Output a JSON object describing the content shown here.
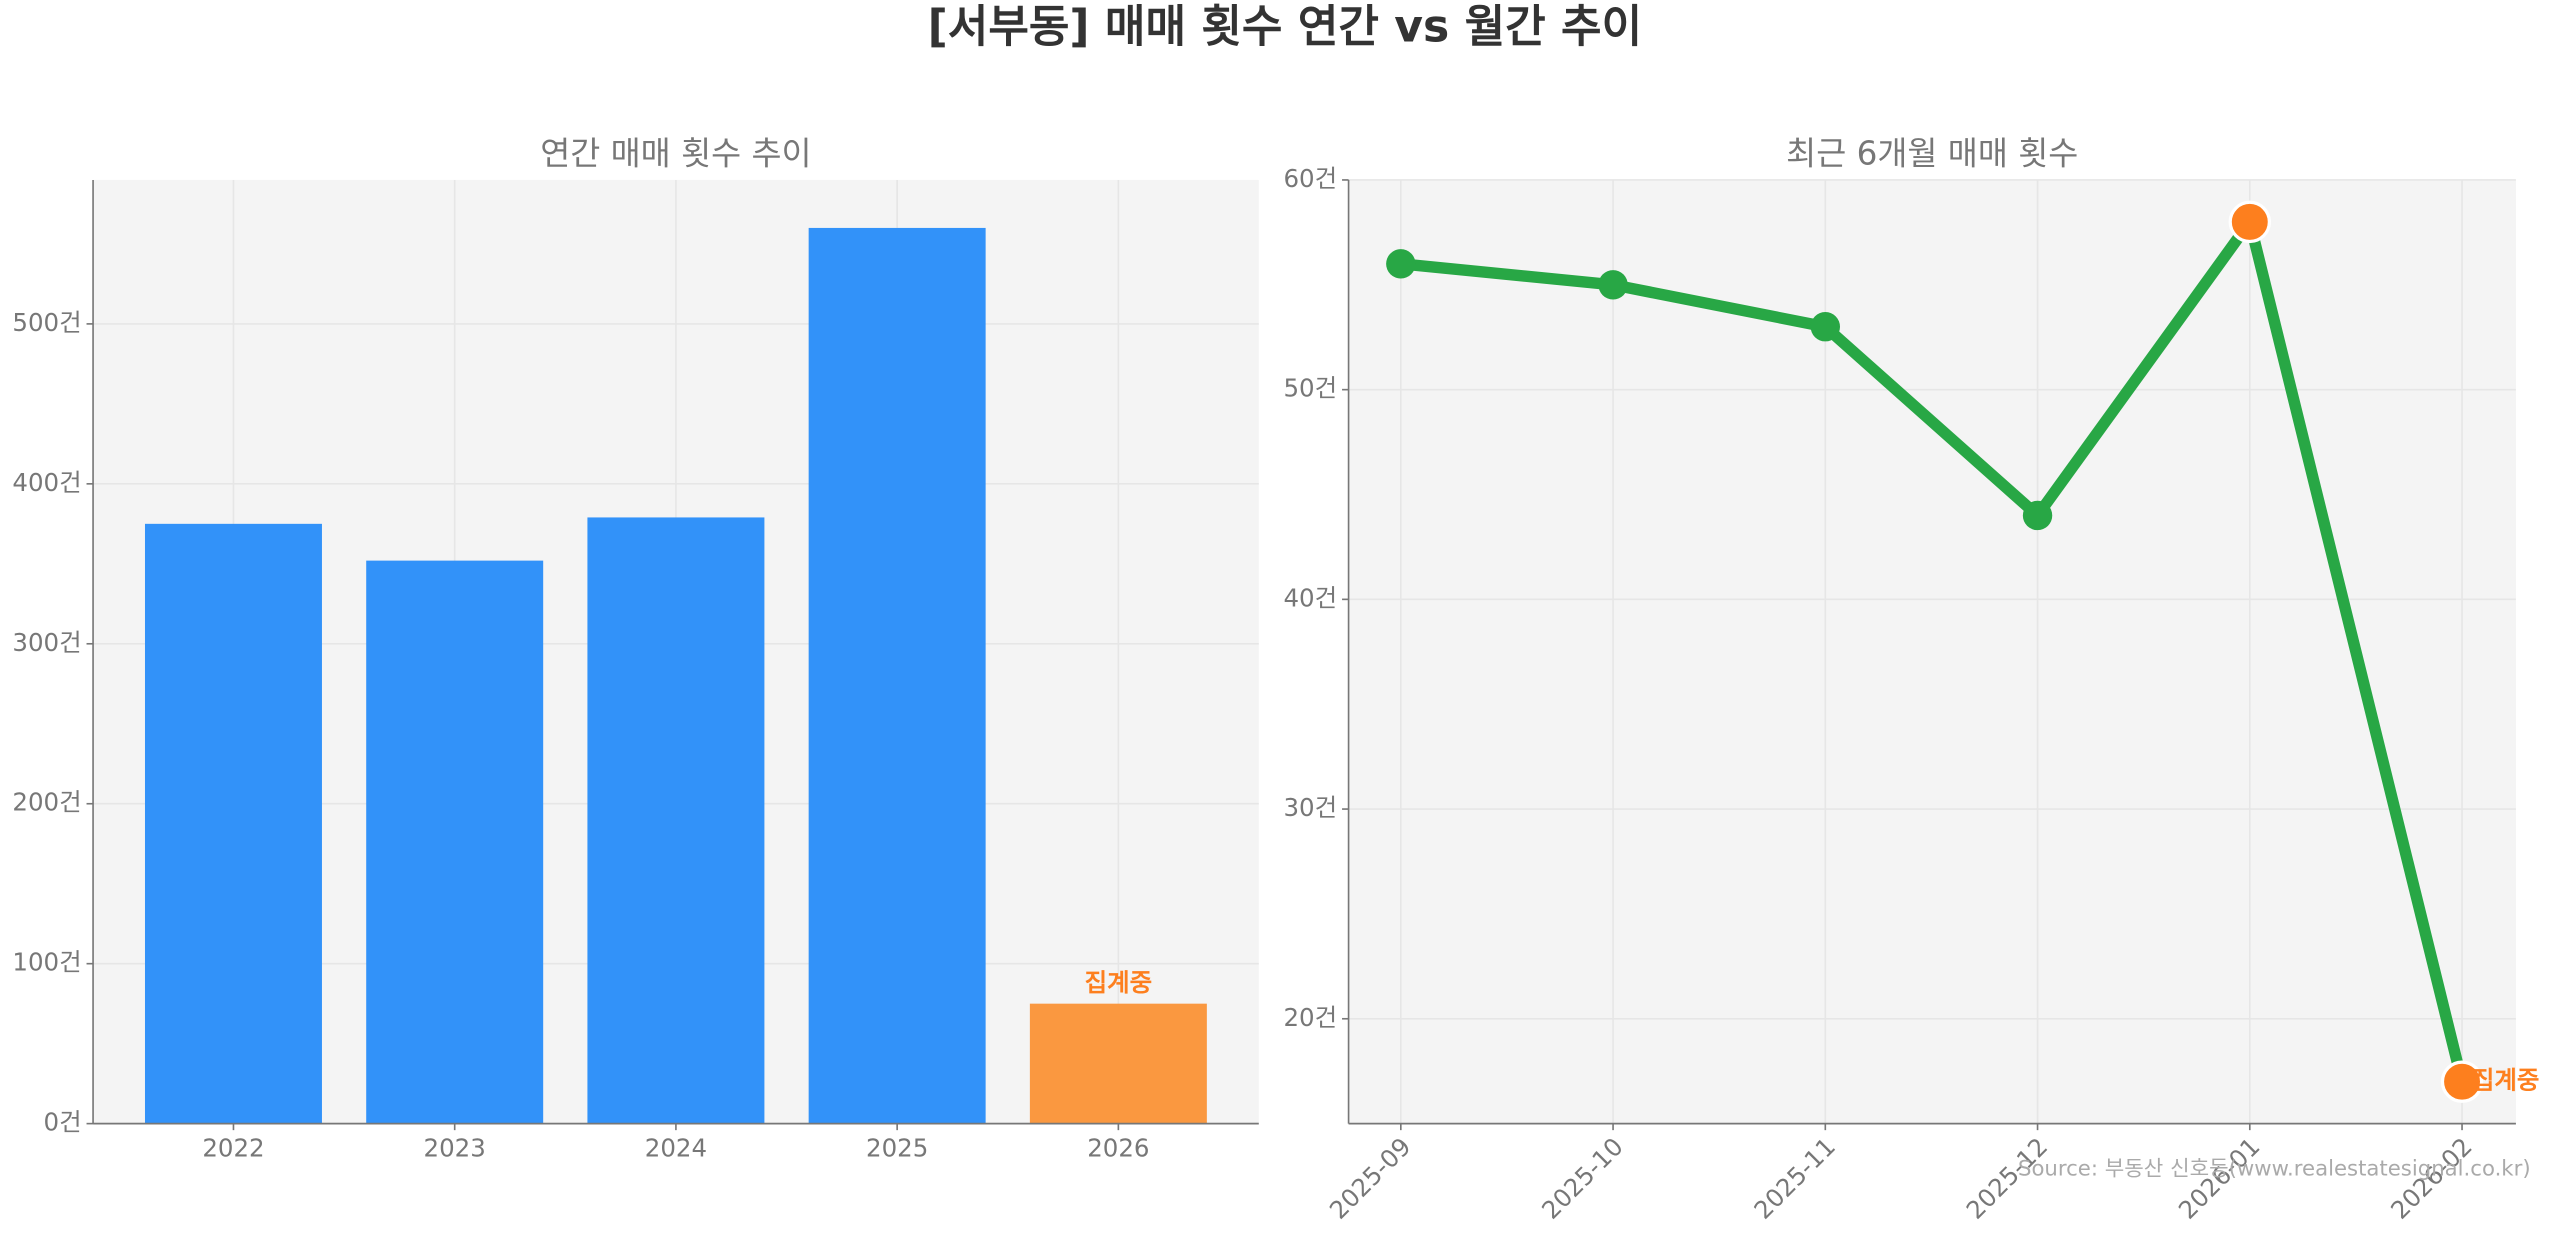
{
  "title": "[서부동] 매매 횟수 연간 vs 월간 추이",
  "source": "Source: 부동산 신호등(www.realestatesignal.co.kr)",
  "chart_data": [
    {
      "type": "bar",
      "title": "연간 매매 횟수 추이",
      "categories": [
        "2022",
        "2023",
        "2024",
        "2025",
        "2026"
      ],
      "values": [
        375,
        352,
        379,
        560,
        75
      ],
      "colors": [
        "#3292f9",
        "#3292f9",
        "#3292f9",
        "#3292f9",
        "#fa9840"
      ],
      "ylim": [
        0,
        590
      ],
      "yticks": [
        {
          "value": 0,
          "label": "0건"
        },
        {
          "value": 100,
          "label": "100건"
        },
        {
          "value": 200,
          "label": "200건"
        },
        {
          "value": 300,
          "label": "300건"
        },
        {
          "value": 400,
          "label": "400건"
        },
        {
          "value": 500,
          "label": "500건"
        }
      ],
      "grid": true,
      "annotation": "집계중",
      "annotation_color": "#fd7f1e"
    },
    {
      "type": "line",
      "title": "최근 6개월 매매 횟수",
      "categories": [
        "2025-09",
        "2025-10",
        "2025-11",
        "2025-12",
        "2026-01",
        "2026-02"
      ],
      "values": [
        56,
        55,
        53,
        44,
        58,
        17
      ],
      "color": "#28a745",
      "marker_colors": [
        "#28a745",
        "#28a745",
        "#28a745",
        "#28a745",
        "#fd7f1e",
        "#fd7f1e"
      ],
      "ylim": [
        15,
        60
      ],
      "yticks": [
        {
          "value": 20,
          "label": "20건"
        },
        {
          "value": 30,
          "label": "30건"
        },
        {
          "value": 40,
          "label": "40건"
        },
        {
          "value": 50,
          "label": "50건"
        },
        {
          "value": 60,
          "label": "60건"
        }
      ],
      "grid": true,
      "annotation": "집계중",
      "annotation_color": "#fd7f1e"
    }
  ]
}
